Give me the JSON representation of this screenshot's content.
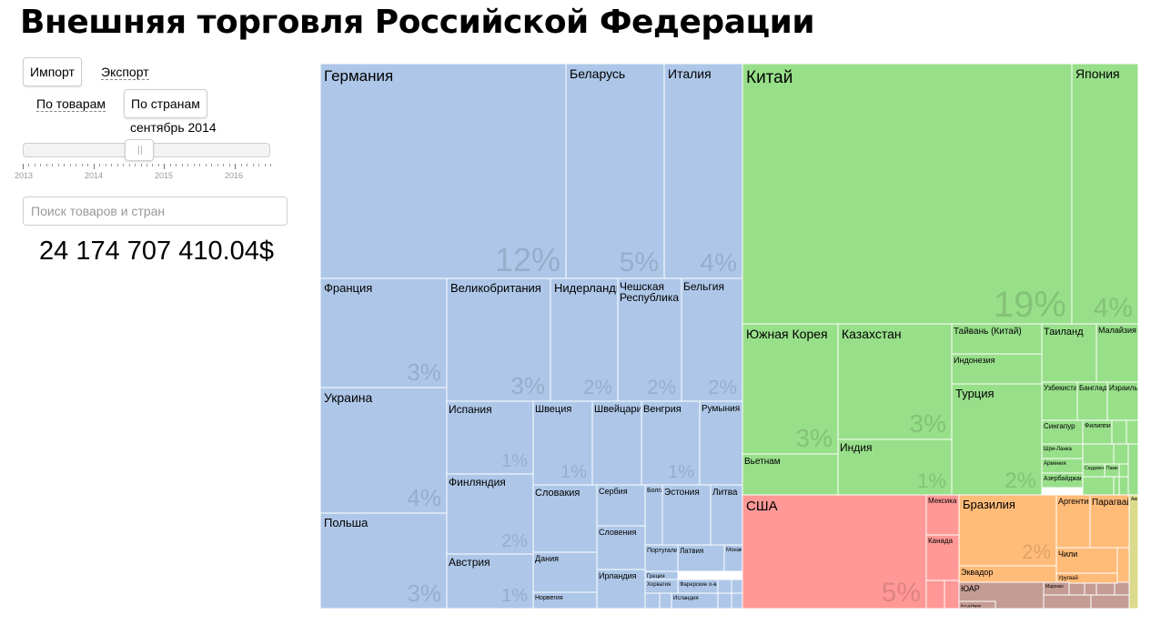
{
  "page": {
    "title": "Внешняя торговля Российской Федерации"
  },
  "controls": {
    "import_label": "Импорт",
    "export_label": "Экспорт",
    "by_goods_label": "По товарам",
    "by_countries_label": "По странам",
    "selected_month": "сентябрь 2014",
    "slider": {
      "value": 2014.67,
      "min": 2013,
      "max": 2016.55,
      "year_labels": [
        "2013",
        "2014",
        "2015",
        "2016"
      ]
    },
    "search_placeholder": "Поиск товаров и стран",
    "total_value": "24 174 707 410.04$"
  },
  "colors": {
    "europe": "#aec7e8",
    "asia": "#98df8a",
    "america_north": "#ff9896",
    "america_south": "#ffbb78",
    "africa": "#c49c94",
    "oceania": "#dbdb8d",
    "border": "#ffffff"
  },
  "chart_data": {
    "type": "treemap",
    "title": "Внешняя торговля Российской Федерации",
    "value": "24 174 707 410.04$",
    "cells": [
      {
        "name": "Германия",
        "region": "europe",
        "pct": "12%"
      },
      {
        "name": "Беларусь",
        "region": "europe",
        "pct": "5%"
      },
      {
        "name": "Италия",
        "region": "europe",
        "pct": "4%"
      },
      {
        "name": "Франция",
        "region": "europe",
        "pct": "3%"
      },
      {
        "name": "Великобритания",
        "region": "europe",
        "pct": "3%"
      },
      {
        "name": "Нидерланды",
        "region": "europe",
        "pct": "2%"
      },
      {
        "name": "Чешская Республика",
        "region": "europe",
        "pct": "2%"
      },
      {
        "name": "Бельгия",
        "region": "europe",
        "pct": "2%"
      },
      {
        "name": "Украина",
        "region": "europe",
        "pct": "4%"
      },
      {
        "name": "Польша",
        "region": "europe",
        "pct": "3%"
      },
      {
        "name": "Испания",
        "region": "europe",
        "pct": "1%"
      },
      {
        "name": "Швеция",
        "region": "europe",
        "pct": "1%"
      },
      {
        "name": "Швейцария",
        "region": "europe",
        "pct": ""
      },
      {
        "name": "Венгрия",
        "region": "europe",
        "pct": "1%"
      },
      {
        "name": "Румыния",
        "region": "europe",
        "pct": ""
      },
      {
        "name": "Финляндия",
        "region": "europe",
        "pct": "2%"
      },
      {
        "name": "Словакия",
        "region": "europe",
        "pct": ""
      },
      {
        "name": "Сербия",
        "region": "europe",
        "pct": ""
      },
      {
        "name": "Болгария",
        "region": "europe",
        "pct": ""
      },
      {
        "name": "Эстония",
        "region": "europe",
        "pct": ""
      },
      {
        "name": "Литва",
        "region": "europe",
        "pct": ""
      },
      {
        "name": "Словения",
        "region": "europe",
        "pct": ""
      },
      {
        "name": "Австрия",
        "region": "europe",
        "pct": "1%"
      },
      {
        "name": "Дания",
        "region": "europe",
        "pct": ""
      },
      {
        "name": "Португалия",
        "region": "europe",
        "pct": ""
      },
      {
        "name": "Латвия",
        "region": "europe",
        "pct": ""
      },
      {
        "name": "Монако",
        "region": "europe",
        "pct": ""
      },
      {
        "name": "Ирландия",
        "region": "europe",
        "pct": ""
      },
      {
        "name": "Греция",
        "region": "europe",
        "pct": ""
      },
      {
        "name": "Хорватия",
        "region": "europe",
        "pct": ""
      },
      {
        "name": "Фарерские о-ва",
        "region": "europe",
        "pct": ""
      },
      {
        "name": "Норвегия",
        "region": "europe",
        "pct": ""
      },
      {
        "name": "Исландия",
        "region": "europe",
        "pct": ""
      },
      {
        "name": "Китай",
        "region": "asia",
        "pct": "19%"
      },
      {
        "name": "Япония",
        "region": "asia",
        "pct": "4%"
      },
      {
        "name": "Южная Корея",
        "region": "asia",
        "pct": "3%"
      },
      {
        "name": "Казахстан",
        "region": "asia",
        "pct": "3%"
      },
      {
        "name": "Тайвань (Китай)",
        "region": "asia",
        "pct": ""
      },
      {
        "name": "Таиланд",
        "region": "asia",
        "pct": ""
      },
      {
        "name": "Малайзия",
        "region": "asia",
        "pct": ""
      },
      {
        "name": "Индонезия",
        "region": "asia",
        "pct": ""
      },
      {
        "name": "Турция",
        "region": "asia",
        "pct": "2%"
      },
      {
        "name": "Узбекистан",
        "region": "asia",
        "pct": ""
      },
      {
        "name": "Бангладеш",
        "region": "asia",
        "pct": ""
      },
      {
        "name": "Израиль",
        "region": "asia",
        "pct": ""
      },
      {
        "name": "Сингапур",
        "region": "asia",
        "pct": ""
      },
      {
        "name": "Филиппины",
        "region": "asia",
        "pct": ""
      },
      {
        "name": "Шри-Ланка",
        "region": "asia",
        "pct": ""
      },
      {
        "name": "Армения",
        "region": "asia",
        "pct": ""
      },
      {
        "name": "Саудовская Аравия",
        "region": "asia",
        "pct": ""
      },
      {
        "name": "Пакистан",
        "region": "asia",
        "pct": ""
      },
      {
        "name": "Азербайджан",
        "region": "asia",
        "pct": ""
      },
      {
        "name": "Индия",
        "region": "asia",
        "pct": "1%"
      },
      {
        "name": "Вьетнам",
        "region": "asia",
        "pct": ""
      },
      {
        "name": "США",
        "region": "america_north",
        "pct": "5%"
      },
      {
        "name": "Мексика",
        "region": "america_north",
        "pct": ""
      },
      {
        "name": "Канада",
        "region": "america_north",
        "pct": ""
      },
      {
        "name": "Бразилия",
        "region": "america_south",
        "pct": "2%"
      },
      {
        "name": "Аргентина",
        "region": "america_south",
        "pct": ""
      },
      {
        "name": "Парагвай",
        "region": "america_south",
        "pct": ""
      },
      {
        "name": "Чили",
        "region": "america_south",
        "pct": ""
      },
      {
        "name": "Эквадор",
        "region": "america_south",
        "pct": ""
      },
      {
        "name": "Уругвай",
        "region": "america_south",
        "pct": ""
      },
      {
        "name": "ЮАР",
        "region": "africa",
        "pct": ""
      },
      {
        "name": "Марокко",
        "region": "africa",
        "pct": ""
      },
      {
        "name": "Кот-д'Ивуар",
        "region": "africa",
        "pct": ""
      },
      {
        "name": "Австралия",
        "region": "oceania",
        "pct": ""
      }
    ]
  }
}
